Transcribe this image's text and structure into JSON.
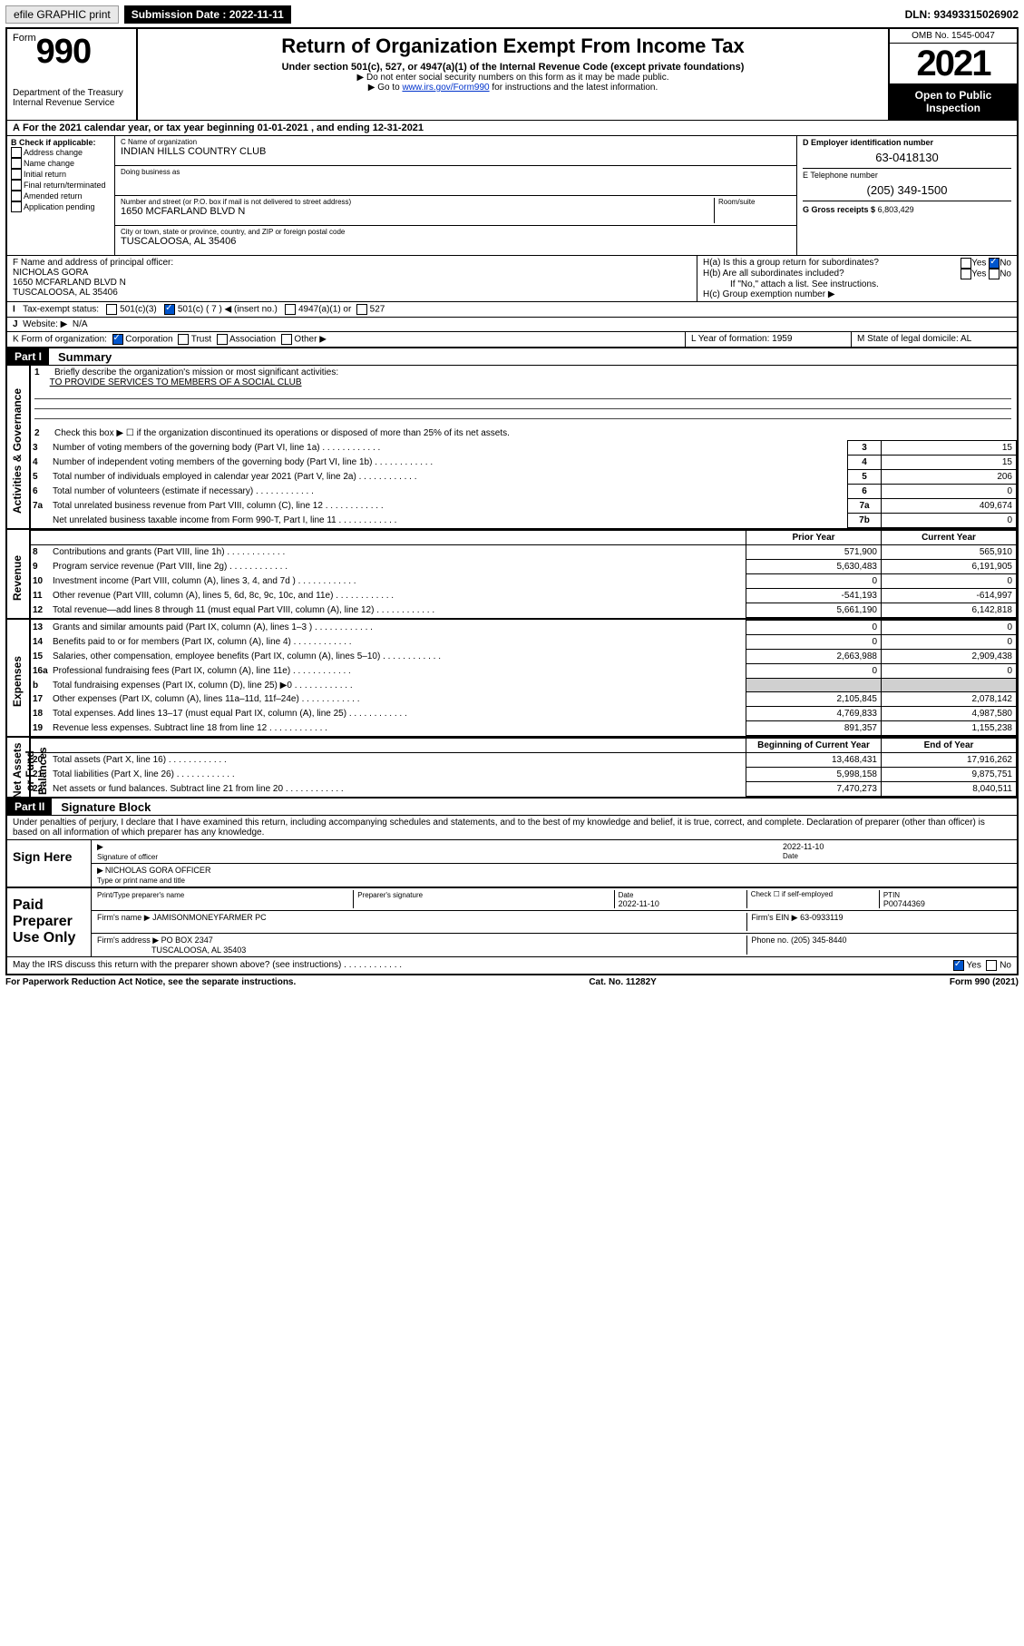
{
  "topbar": {
    "efile": "efile GRAPHIC print",
    "submission_label": "Submission Date : 2022-11-11",
    "dln": "DLN: 93493315026902"
  },
  "header": {
    "form_label": "Form",
    "form_no": "990",
    "title": "Return of Organization Exempt From Income Tax",
    "subtitle": "Under section 501(c), 527, or 4947(a)(1) of the Internal Revenue Code (except private foundations)",
    "note1": "▶ Do not enter social security numbers on this form as it may be made public.",
    "note2_pre": "▶ Go to ",
    "note2_link": "www.irs.gov/Form990",
    "note2_post": " for instructions and the latest information.",
    "dept": "Department of the Treasury\nInternal Revenue Service",
    "omb": "OMB No. 1545-0047",
    "year": "2021",
    "inspection": "Open to Public Inspection"
  },
  "line_a": "For the 2021 calendar year, or tax year beginning 01-01-2021   , and ending 12-31-2021",
  "check_b": {
    "label": "B Check if applicable:",
    "items": [
      "Address change",
      "Name change",
      "Initial return",
      "Final return/terminated",
      "Amended return",
      "Application pending"
    ]
  },
  "block_c": {
    "name_label": "C Name of organization",
    "name": "INDIAN HILLS COUNTRY CLUB",
    "dba_label": "Doing business as",
    "dba": "",
    "street_label": "Number and street (or P.O. box if mail is not delivered to street address)",
    "street": "1650 MCFARLAND BLVD N",
    "room_label": "Room/suite",
    "city_label": "City or town, state or province, country, and ZIP or foreign postal code",
    "city": "TUSCALOOSA, AL  35406"
  },
  "block_d": {
    "label": "D Employer identification number",
    "ein": "63-0418130",
    "tel_label": "E Telephone number",
    "tel": "(205) 349-1500",
    "gross_label": "G Gross receipts $",
    "gross": "6,803,429"
  },
  "block_f": {
    "label": "F  Name and address of principal officer:",
    "name": "NICHOLAS GORA",
    "addr1": "1650 MCFARLAND BLVD N",
    "addr2": "TUSCALOOSA, AL  35406"
  },
  "block_h": {
    "a": "H(a)  Is this a group return for subordinates?",
    "b": "H(b)  Are all subordinates included?",
    "b_note": "If \"No,\" attach a list. See instructions.",
    "c": "H(c)  Group exemption number ▶",
    "yes": "Yes",
    "no": "No"
  },
  "line_i": {
    "label": "Tax-exempt status:",
    "opt1": "501(c)(3)",
    "opt2a": "501(c) ( 7 ) ◀ (insert no.)",
    "opt3": "4947(a)(1) or",
    "opt4": "527"
  },
  "line_j": {
    "label": "Website: ▶",
    "val": "N/A"
  },
  "line_k": {
    "label": "K Form of organization:",
    "opts": [
      "Corporation",
      "Trust",
      "Association",
      "Other ▶"
    ],
    "checked": 0
  },
  "line_l": {
    "label": "L Year of formation: 1959"
  },
  "line_m": {
    "label": "M State of legal domicile: AL"
  },
  "part1": {
    "header": "Part I",
    "title": "Summary",
    "q1": "Briefly describe the organization's mission or most significant activities:",
    "q1_ans": "TO PROVIDE SERVICES TO MEMBERS OF A SOCIAL CLUB",
    "q2": "Check this box ▶ ☐  if the organization discontinued its operations or disposed of more than 25% of its net assets.",
    "side1": "Activities & Governance",
    "side2": "Revenue",
    "side3": "Expenses",
    "side4": "Net Assets or Fund Balances",
    "col_prior": "Prior Year",
    "col_current": "Current Year",
    "col_boy": "Beginning of Current Year",
    "col_eoy": "End of Year",
    "lines_a": [
      {
        "n": "3",
        "t": "Number of voting members of the governing body (Part VI, line 1a)",
        "ln": "3",
        "v": "15"
      },
      {
        "n": "4",
        "t": "Number of independent voting members of the governing body (Part VI, line 1b)",
        "ln": "4",
        "v": "15"
      },
      {
        "n": "5",
        "t": "Total number of individuals employed in calendar year 2021 (Part V, line 2a)",
        "ln": "5",
        "v": "206"
      },
      {
        "n": "6",
        "t": "Total number of volunteers (estimate if necessary)",
        "ln": "6",
        "v": "0"
      },
      {
        "n": "7a",
        "t": "Total unrelated business revenue from Part VIII, column (C), line 12",
        "ln": "7a",
        "v": "409,674"
      },
      {
        "n": "",
        "t": "Net unrelated business taxable income from Form 990-T, Part I, line 11",
        "ln": "7b",
        "v": "0"
      }
    ],
    "lines_rev": [
      {
        "n": "8",
        "t": "Contributions and grants (Part VIII, line 1h)",
        "p": "571,900",
        "c": "565,910"
      },
      {
        "n": "9",
        "t": "Program service revenue (Part VIII, line 2g)",
        "p": "5,630,483",
        "c": "6,191,905"
      },
      {
        "n": "10",
        "t": "Investment income (Part VIII, column (A), lines 3, 4, and 7d )",
        "p": "0",
        "c": "0"
      },
      {
        "n": "11",
        "t": "Other revenue (Part VIII, column (A), lines 5, 6d, 8c, 9c, 10c, and 11e)",
        "p": "-541,193",
        "c": "-614,997"
      },
      {
        "n": "12",
        "t": "Total revenue—add lines 8 through 11 (must equal Part VIII, column (A), line 12)",
        "p": "5,661,190",
        "c": "6,142,818"
      }
    ],
    "lines_exp": [
      {
        "n": "13",
        "t": "Grants and similar amounts paid (Part IX, column (A), lines 1–3 )",
        "p": "0",
        "c": "0"
      },
      {
        "n": "14",
        "t": "Benefits paid to or for members (Part IX, column (A), line 4)",
        "p": "0",
        "c": "0"
      },
      {
        "n": "15",
        "t": "Salaries, other compensation, employee benefits (Part IX, column (A), lines 5–10)",
        "p": "2,663,988",
        "c": "2,909,438"
      },
      {
        "n": "16a",
        "t": "Professional fundraising fees (Part IX, column (A), line 11e)",
        "p": "0",
        "c": "0"
      },
      {
        "n": "b",
        "t": "Total fundraising expenses (Part IX, column (D), line 25) ▶0",
        "p": "GREY",
        "c": "GREY"
      },
      {
        "n": "17",
        "t": "Other expenses (Part IX, column (A), lines 11a–11d, 11f–24e)",
        "p": "2,105,845",
        "c": "2,078,142"
      },
      {
        "n": "18",
        "t": "Total expenses. Add lines 13–17 (must equal Part IX, column (A), line 25)",
        "p": "4,769,833",
        "c": "4,987,580"
      },
      {
        "n": "19",
        "t": "Revenue less expenses. Subtract line 18 from line 12",
        "p": "891,357",
        "c": "1,155,238"
      }
    ],
    "lines_net": [
      {
        "n": "20",
        "t": "Total assets (Part X, line 16)",
        "p": "13,468,431",
        "c": "17,916,262"
      },
      {
        "n": "21",
        "t": "Total liabilities (Part X, line 26)",
        "p": "5,998,158",
        "c": "9,875,751"
      },
      {
        "n": "22",
        "t": "Net assets or fund balances. Subtract line 21 from line 20",
        "p": "7,470,273",
        "c": "8,040,511"
      }
    ]
  },
  "part2": {
    "header": "Part II",
    "title": "Signature Block",
    "decl": "Under penalties of perjury, I declare that I have examined this return, including accompanying schedules and statements, and to the best of my knowledge and belief, it is true, correct, and complete. Declaration of preparer (other than officer) is based on all information of which preparer has any knowledge.",
    "sign_here": "Sign Here",
    "sig_officer": "Signature of officer",
    "sig_date": "2022-11-10",
    "date_label": "Date",
    "officer_name": "NICHOLAS GORA  OFFICER",
    "officer_name_label": "Type or print name and title",
    "paid": "Paid Preparer Use Only",
    "prep_name_label": "Print/Type preparer's name",
    "prep_sig_label": "Preparer's signature",
    "prep_date": "2022-11-10",
    "check_self": "Check ☐ if self-employed",
    "ptin_label": "PTIN",
    "ptin": "P00744369",
    "firm_name_label": "Firm's name     ▶",
    "firm_name": "JAMISONMONEYFARMER PC",
    "firm_ein_label": "Firm's EIN ▶",
    "firm_ein": "63-0933119",
    "firm_addr_label": "Firm's address ▶",
    "firm_addr1": "PO BOX 2347",
    "firm_addr2": "TUSCALOOSA, AL  35403",
    "phone_label": "Phone no.",
    "phone": "(205) 345-8440",
    "may_irs": "May the IRS discuss this return with the preparer shown above? (see instructions)",
    "yes": "Yes",
    "no": "No"
  },
  "footer": {
    "left": "For Paperwork Reduction Act Notice, see the separate instructions.",
    "mid": "Cat. No. 11282Y",
    "right": "Form 990 (2021)"
  }
}
